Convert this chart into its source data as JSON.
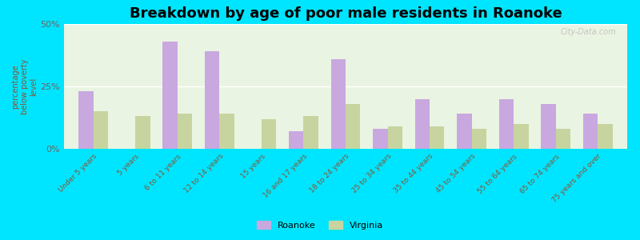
{
  "title": "Breakdown by age of poor male residents in Roanoke",
  "ylabel": "percentage\nbelow poverty\nlevel",
  "categories": [
    "Under 5 years",
    "5 years",
    "6 to 11 years",
    "12 to 14 years",
    "15 years",
    "16 and 17 years",
    "18 to 24 years",
    "25 to 34 years",
    "35 to 44 years",
    "45 to 54 years",
    "55 to 64 years",
    "65 to 74 years",
    "75 years and over"
  ],
  "roanoke_values": [
    23,
    0,
    43,
    39,
    0,
    7,
    36,
    8,
    20,
    14,
    20,
    18,
    14
  ],
  "virginia_values": [
    15,
    13,
    14,
    14,
    12,
    13,
    18,
    9,
    9,
    8,
    10,
    8,
    10
  ],
  "roanoke_color": "#c9a8e0",
  "virginia_color": "#c8d4a0",
  "background_color": "#00e5ff",
  "plot_bg_color": "#eaf4e2",
  "ylim": [
    0,
    50
  ],
  "yticks": [
    0,
    25,
    50
  ],
  "ytick_labels": [
    "0%",
    "25%",
    "50%"
  ],
  "bar_width": 0.35,
  "title_fontsize": 13,
  "legend_labels": [
    "Roanoke",
    "Virginia"
  ],
  "watermark": "City-Data.com"
}
